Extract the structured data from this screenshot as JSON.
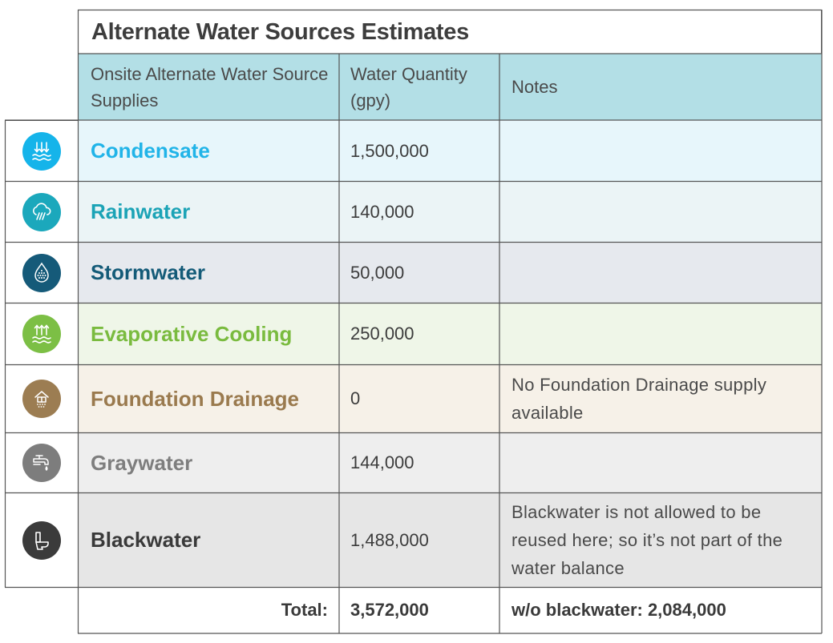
{
  "title": "Alternate Water Sources Estimates",
  "headers": {
    "source": "Onsite Alternate Water Source Supplies",
    "quantity": "Water Quantity (gpy)",
    "notes": "Notes"
  },
  "rows": [
    {
      "name": "Condensate",
      "quantity": "1,500,000",
      "note": "",
      "color": "#21b4e8",
      "bg": "#e7f6fb",
      "icon": "condensate-icon",
      "icon_color": "#15b4ea"
    },
    {
      "name": "Rainwater",
      "quantity": "140,000",
      "note": "",
      "color": "#1ba3b6",
      "bg": "#ebf4f6",
      "icon": "rain-cloud-icon",
      "icon_color": "#1ba8bc"
    },
    {
      "name": "Stormwater",
      "quantity": "50,000",
      "note": "",
      "color": "#145b78",
      "bg": "#e6e9ee",
      "icon": "storm-drain-icon",
      "icon_color": "#155a79"
    },
    {
      "name": "Evaporative Cooling",
      "quantity": "250,000",
      "note": "",
      "color": "#7abb3f",
      "bg": "#eff6e8",
      "icon": "evaporation-icon",
      "icon_color": "#7cbf45"
    },
    {
      "name": "Foundation Drainage",
      "quantity": "0",
      "note": "No Foundation Drainage supply available",
      "color": "#9a7a4e",
      "bg": "#f6f1e8",
      "icon": "foundation-drain-icon",
      "icon_color": "#9c7d52"
    },
    {
      "name": "Graywater",
      "quantity": "144,000",
      "note": "",
      "color": "#7e7e7e",
      "bg": "#eeeeee",
      "icon": "faucet-icon",
      "icon_color": "#7d7d7d"
    },
    {
      "name": "Blackwater",
      "quantity": "1,488,000",
      "note": "Blackwater is not allowed to be reused here; so it’s not part of the water balance",
      "color": "#3a3a3a",
      "bg": "#e6e6e6",
      "icon": "toilet-icon",
      "icon_color": "#3b3b3b"
    }
  ],
  "total": {
    "label": "Total:",
    "value": "3,572,000",
    "note": "w/o blackwater: 2,084,000"
  }
}
